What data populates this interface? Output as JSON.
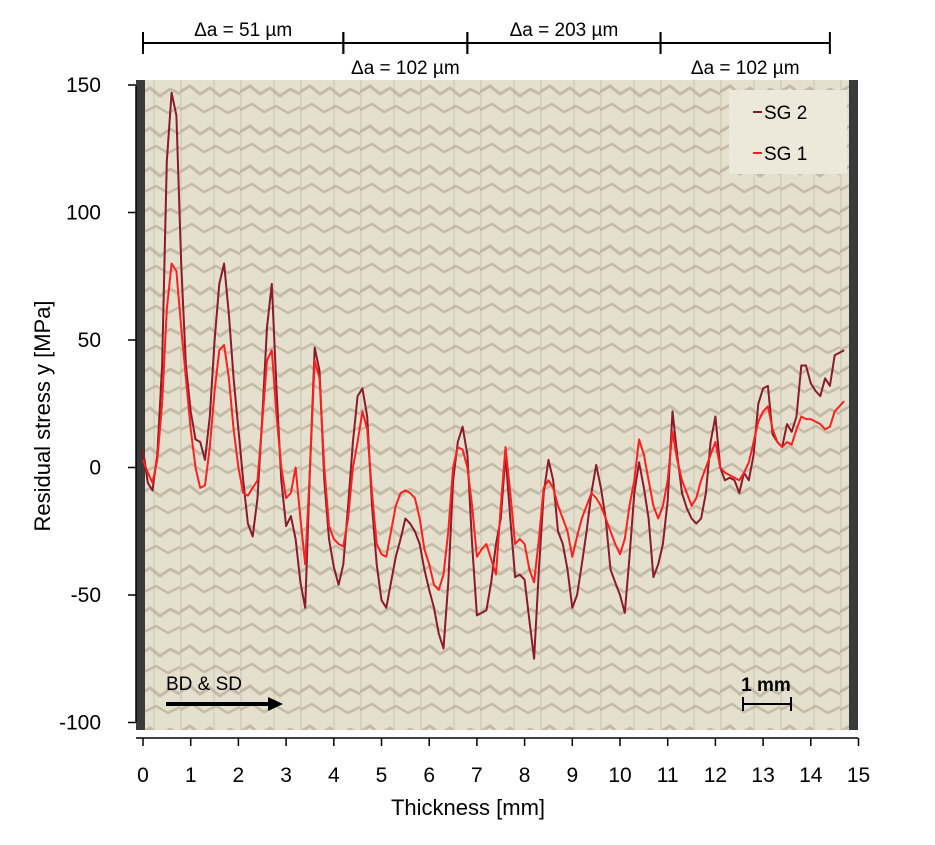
{
  "chart_data": {
    "type": "line",
    "xlabel": "Thickness [mm]",
    "ylabel": "Residual stress y [MPa]",
    "xlim": [
      0,
      15
    ],
    "ylim": [
      -100,
      150
    ],
    "x_ticks": [
      0,
      1,
      2,
      3,
      4,
      5,
      6,
      7,
      8,
      9,
      10,
      11,
      12,
      13,
      14,
      15
    ],
    "y_ticks": [
      -100,
      -50,
      0,
      50,
      100,
      150
    ],
    "legend_position": "top-right",
    "series": [
      {
        "name": "SG 2",
        "color": "#8b1a2b",
        "points": [
          [
            0.0,
            7
          ],
          [
            0.1,
            -6
          ],
          [
            0.2,
            -9
          ],
          [
            0.3,
            5
          ],
          [
            0.4,
            40
          ],
          [
            0.5,
            120
          ],
          [
            0.6,
            147
          ],
          [
            0.7,
            138
          ],
          [
            0.8,
            80
          ],
          [
            0.9,
            40
          ],
          [
            1.0,
            22
          ],
          [
            1.1,
            11
          ],
          [
            1.2,
            10
          ],
          [
            1.3,
            3
          ],
          [
            1.4,
            20
          ],
          [
            1.5,
            50
          ],
          [
            1.6,
            72
          ],
          [
            1.7,
            80
          ],
          [
            1.8,
            60
          ],
          [
            1.9,
            35
          ],
          [
            2.0,
            15
          ],
          [
            2.1,
            -5
          ],
          [
            2.2,
            -22
          ],
          [
            2.3,
            -27
          ],
          [
            2.4,
            -12
          ],
          [
            2.5,
            20
          ],
          [
            2.6,
            55
          ],
          [
            2.7,
            72
          ],
          [
            2.8,
            30
          ],
          [
            2.9,
            -5
          ],
          [
            3.0,
            -23
          ],
          [
            3.1,
            -19
          ],
          [
            3.2,
            -28
          ],
          [
            3.3,
            -45
          ],
          [
            3.4,
            -55
          ],
          [
            3.5,
            0
          ],
          [
            3.6,
            47
          ],
          [
            3.7,
            38
          ],
          [
            3.8,
            -5
          ],
          [
            3.9,
            -28
          ],
          [
            4.0,
            -39
          ],
          [
            4.1,
            -46
          ],
          [
            4.2,
            -38
          ],
          [
            4.3,
            -15
          ],
          [
            4.4,
            10
          ],
          [
            4.5,
            28
          ],
          [
            4.6,
            31
          ],
          [
            4.7,
            20
          ],
          [
            4.8,
            -15
          ],
          [
            4.9,
            -38
          ],
          [
            5.0,
            -52
          ],
          [
            5.1,
            -55
          ],
          [
            5.2,
            -45
          ],
          [
            5.3,
            -35
          ],
          [
            5.4,
            -28
          ],
          [
            5.5,
            -20
          ],
          [
            5.6,
            -22
          ],
          [
            5.7,
            -25
          ],
          [
            5.8,
            -30
          ],
          [
            5.9,
            -40
          ],
          [
            6.0,
            -48
          ],
          [
            6.1,
            -55
          ],
          [
            6.2,
            -65
          ],
          [
            6.3,
            -71
          ],
          [
            6.4,
            -45
          ],
          [
            6.5,
            -5
          ],
          [
            6.6,
            10
          ],
          [
            6.7,
            16
          ],
          [
            6.8,
            5
          ],
          [
            6.9,
            -30
          ],
          [
            7.0,
            -58
          ],
          [
            7.1,
            -57
          ],
          [
            7.2,
            -56
          ],
          [
            7.3,
            -45
          ],
          [
            7.4,
            -30
          ],
          [
            7.5,
            -20
          ],
          [
            7.6,
            5
          ],
          [
            7.7,
            -20
          ],
          [
            7.8,
            -43
          ],
          [
            7.9,
            -42
          ],
          [
            8.0,
            -44
          ],
          [
            8.1,
            -60
          ],
          [
            8.2,
            -75
          ],
          [
            8.3,
            -40
          ],
          [
            8.4,
            -10
          ],
          [
            8.5,
            3
          ],
          [
            8.6,
            -5
          ],
          [
            8.7,
            -25
          ],
          [
            8.8,
            -30
          ],
          [
            8.9,
            -40
          ],
          [
            9.0,
            -55
          ],
          [
            9.1,
            -50
          ],
          [
            9.2,
            -38
          ],
          [
            9.3,
            -25
          ],
          [
            9.4,
            -10
          ],
          [
            9.5,
            1
          ],
          [
            9.6,
            -8
          ],
          [
            9.7,
            -20
          ],
          [
            9.8,
            -40
          ],
          [
            9.9,
            -45
          ],
          [
            10.0,
            -50
          ],
          [
            10.1,
            -57
          ],
          [
            10.2,
            -35
          ],
          [
            10.3,
            -10
          ],
          [
            10.4,
            2
          ],
          [
            10.5,
            -8
          ],
          [
            10.6,
            -20
          ],
          [
            10.7,
            -43
          ],
          [
            10.8,
            -38
          ],
          [
            10.9,
            -30
          ],
          [
            11.0,
            -13
          ],
          [
            11.1,
            22
          ],
          [
            11.2,
            5
          ],
          [
            11.3,
            -10
          ],
          [
            11.4,
            -16
          ],
          [
            11.5,
            -20
          ],
          [
            11.6,
            -22
          ],
          [
            11.7,
            -20
          ],
          [
            11.8,
            -10
          ],
          [
            11.9,
            10
          ],
          [
            12.0,
            20
          ],
          [
            12.1,
            0
          ],
          [
            12.2,
            -5
          ],
          [
            12.3,
            -4
          ],
          [
            12.4,
            -5
          ],
          [
            12.5,
            -10
          ],
          [
            12.6,
            -2
          ],
          [
            12.7,
            -5
          ],
          [
            12.8,
            5
          ],
          [
            12.9,
            25
          ],
          [
            13.0,
            31
          ],
          [
            13.1,
            32
          ],
          [
            13.2,
            13
          ],
          [
            13.3,
            10
          ],
          [
            13.4,
            8
          ],
          [
            13.5,
            17
          ],
          [
            13.6,
            14
          ],
          [
            13.7,
            20
          ],
          [
            13.8,
            40
          ],
          [
            13.9,
            40
          ],
          [
            14.0,
            33
          ],
          [
            14.1,
            30
          ],
          [
            14.2,
            28
          ],
          [
            14.3,
            35
          ],
          [
            14.4,
            32
          ],
          [
            14.5,
            44
          ],
          [
            14.6,
            45
          ],
          [
            14.7,
            46
          ]
        ]
      },
      {
        "name": "SG 1",
        "color": "#ff1f1f",
        "points": [
          [
            0.0,
            3
          ],
          [
            0.1,
            -2
          ],
          [
            0.2,
            -6
          ],
          [
            0.3,
            3
          ],
          [
            0.4,
            25
          ],
          [
            0.5,
            62
          ],
          [
            0.6,
            80
          ],
          [
            0.7,
            77
          ],
          [
            0.8,
            55
          ],
          [
            0.9,
            35
          ],
          [
            1.0,
            15
          ],
          [
            1.1,
            0
          ],
          [
            1.2,
            -8
          ],
          [
            1.3,
            -7
          ],
          [
            1.4,
            8
          ],
          [
            1.5,
            30
          ],
          [
            1.6,
            46
          ],
          [
            1.7,
            48
          ],
          [
            1.8,
            35
          ],
          [
            1.9,
            15
          ],
          [
            2.0,
            0
          ],
          [
            2.1,
            -10
          ],
          [
            2.2,
            -11
          ],
          [
            2.3,
            -8
          ],
          [
            2.4,
            -5
          ],
          [
            2.5,
            18
          ],
          [
            2.6,
            42
          ],
          [
            2.7,
            46
          ],
          [
            2.8,
            20
          ],
          [
            2.9,
            0
          ],
          [
            3.0,
            -12
          ],
          [
            3.1,
            -10
          ],
          [
            3.2,
            0
          ],
          [
            3.3,
            -20
          ],
          [
            3.4,
            -38
          ],
          [
            3.5,
            0
          ],
          [
            3.6,
            42
          ],
          [
            3.7,
            35
          ],
          [
            3.8,
            0
          ],
          [
            3.9,
            -23
          ],
          [
            4.0,
            -28
          ],
          [
            4.1,
            -30
          ],
          [
            4.2,
            -31
          ],
          [
            4.3,
            -20
          ],
          [
            4.4,
            0
          ],
          [
            4.5,
            10
          ],
          [
            4.6,
            22
          ],
          [
            4.7,
            15
          ],
          [
            4.8,
            -10
          ],
          [
            4.9,
            -30
          ],
          [
            5.0,
            -34
          ],
          [
            5.1,
            -35
          ],
          [
            5.2,
            -25
          ],
          [
            5.3,
            -15
          ],
          [
            5.4,
            -10
          ],
          [
            5.5,
            -9
          ],
          [
            5.6,
            -10
          ],
          [
            5.7,
            -12
          ],
          [
            5.8,
            -20
          ],
          [
            5.9,
            -32
          ],
          [
            6.0,
            -38
          ],
          [
            6.1,
            -46
          ],
          [
            6.2,
            -48
          ],
          [
            6.3,
            -42
          ],
          [
            6.4,
            -25
          ],
          [
            6.5,
            0
          ],
          [
            6.6,
            8
          ],
          [
            6.7,
            7
          ],
          [
            6.8,
            0
          ],
          [
            6.9,
            -15
          ],
          [
            7.0,
            -35
          ],
          [
            7.1,
            -32
          ],
          [
            7.2,
            -30
          ],
          [
            7.3,
            -36
          ],
          [
            7.4,
            -42
          ],
          [
            7.5,
            -15
          ],
          [
            7.6,
            8
          ],
          [
            7.7,
            -10
          ],
          [
            7.8,
            -30
          ],
          [
            7.9,
            -28
          ],
          [
            8.0,
            -30
          ],
          [
            8.1,
            -40
          ],
          [
            8.2,
            -45
          ],
          [
            8.3,
            -28
          ],
          [
            8.4,
            -8
          ],
          [
            8.5,
            -5
          ],
          [
            8.6,
            -8
          ],
          [
            8.7,
            -15
          ],
          [
            8.8,
            -20
          ],
          [
            8.9,
            -25
          ],
          [
            9.0,
            -35
          ],
          [
            9.1,
            -27
          ],
          [
            9.2,
            -20
          ],
          [
            9.3,
            -15
          ],
          [
            9.4,
            -10
          ],
          [
            9.5,
            -12
          ],
          [
            9.6,
            -15
          ],
          [
            9.7,
            -20
          ],
          [
            9.8,
            -25
          ],
          [
            9.9,
            -30
          ],
          [
            10.0,
            -34
          ],
          [
            10.1,
            -28
          ],
          [
            10.2,
            -15
          ],
          [
            10.3,
            -5
          ],
          [
            10.4,
            11
          ],
          [
            10.5,
            5
          ],
          [
            10.6,
            -5
          ],
          [
            10.7,
            -15
          ],
          [
            10.8,
            -20
          ],
          [
            10.9,
            -15
          ],
          [
            11.0,
            -5
          ],
          [
            11.1,
            14
          ],
          [
            11.2,
            3
          ],
          [
            11.3,
            -5
          ],
          [
            11.4,
            -10
          ],
          [
            11.5,
            -15
          ],
          [
            11.6,
            -12
          ],
          [
            11.7,
            -5
          ],
          [
            11.8,
            0
          ],
          [
            11.9,
            5
          ],
          [
            12.0,
            10
          ],
          [
            12.1,
            0
          ],
          [
            12.2,
            -2
          ],
          [
            12.3,
            -3
          ],
          [
            12.4,
            -4
          ],
          [
            12.5,
            -5
          ],
          [
            12.6,
            -2
          ],
          [
            12.7,
            2
          ],
          [
            12.8,
            10
          ],
          [
            12.9,
            18
          ],
          [
            13.0,
            22
          ],
          [
            13.1,
            24
          ],
          [
            13.2,
            15
          ],
          [
            13.3,
            10
          ],
          [
            13.4,
            8
          ],
          [
            13.5,
            10
          ],
          [
            13.6,
            9
          ],
          [
            13.7,
            15
          ],
          [
            13.8,
            20
          ],
          [
            13.9,
            19
          ],
          [
            14.0,
            19
          ],
          [
            14.1,
            18
          ],
          [
            14.2,
            17
          ],
          [
            14.3,
            15
          ],
          [
            14.4,
            16
          ],
          [
            14.5,
            22
          ],
          [
            14.6,
            24
          ],
          [
            14.7,
            26
          ]
        ]
      }
    ],
    "segments": [
      {
        "label": "Δa = 51 µm",
        "from": 0,
        "to": 4.2
      },
      {
        "label": "Δa = 102 µm",
        "from": 4.2,
        "to": 6.8
      },
      {
        "label": "Δa = 203 µm",
        "from": 6.8,
        "to": 10.85
      },
      {
        "label": "Δa = 102 µm",
        "from": 10.85,
        "to": 14.4
      }
    ],
    "annotations": {
      "direction_label": "BD & SD",
      "scale_bar_label": "1 mm"
    }
  }
}
